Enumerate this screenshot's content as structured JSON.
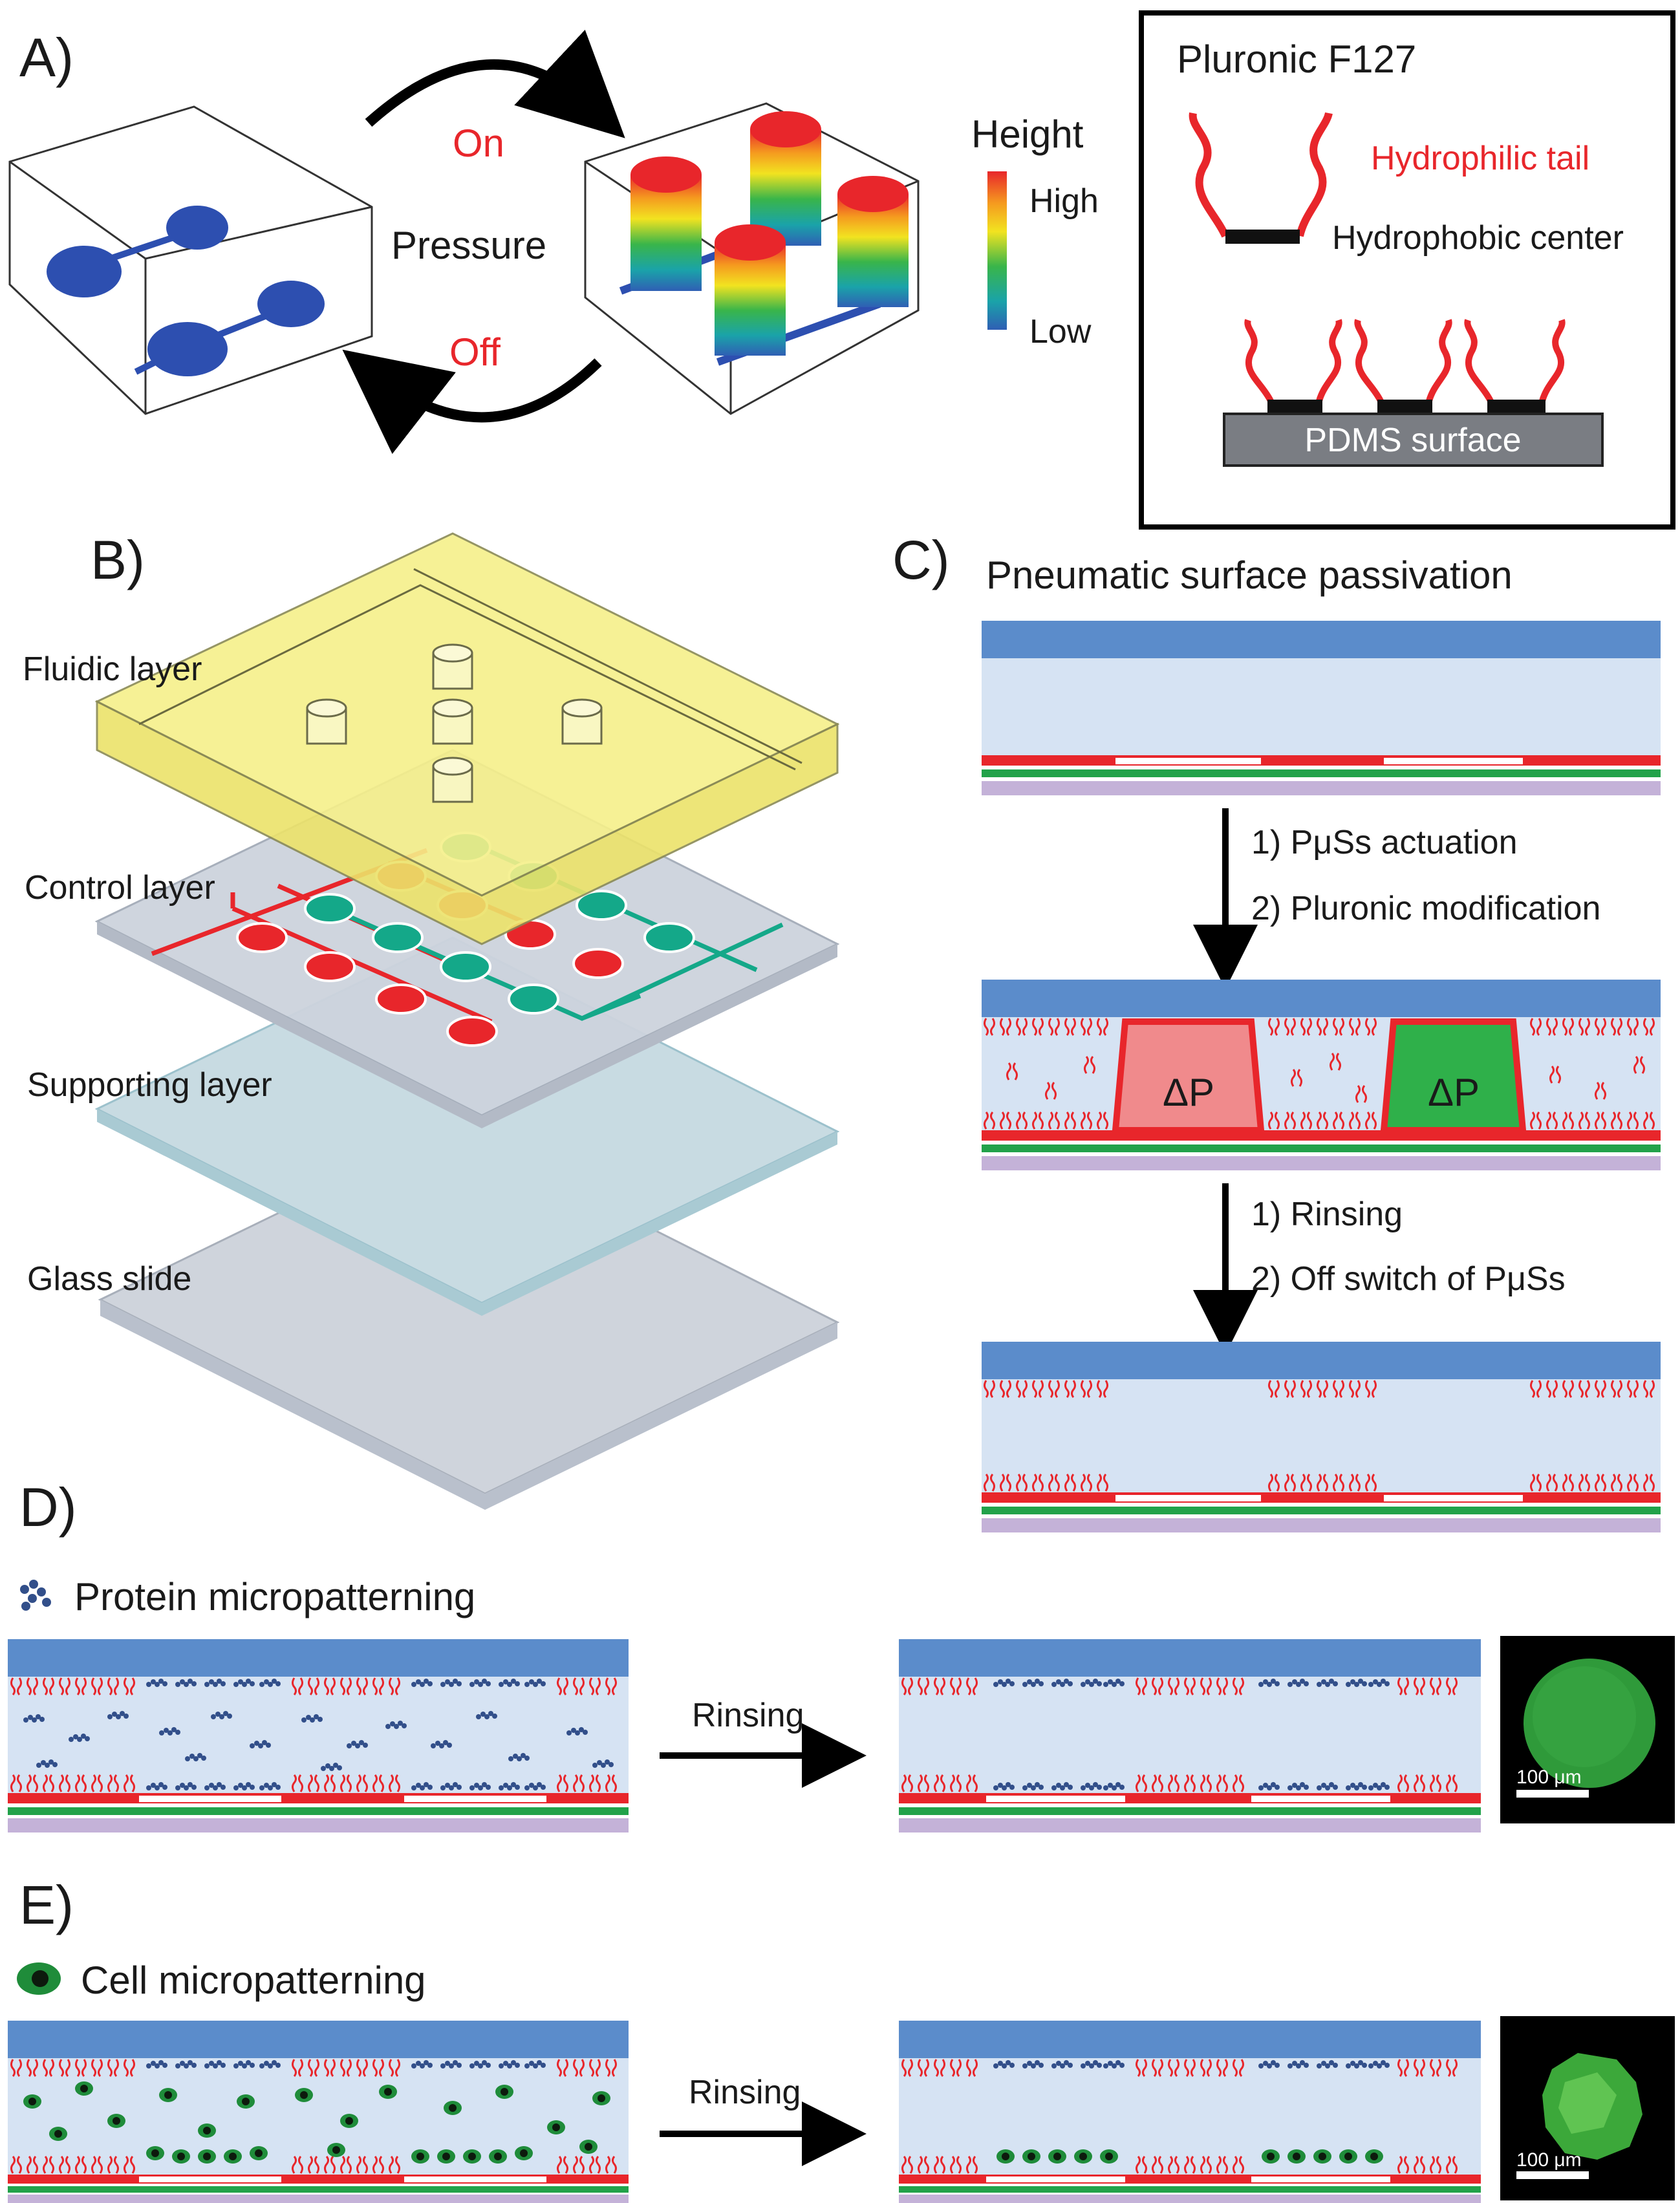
{
  "panels": {
    "a": "A)",
    "b": "B)",
    "c": "C)",
    "d": "D)",
    "e": "E)"
  },
  "panel_a": {
    "on": "On",
    "off": "Off",
    "pressure": "Pressure",
    "legend": {
      "title": "Height",
      "high": "High",
      "low": "Low"
    },
    "box": {
      "title": "Pluronic F127",
      "hydrophilic": "Hydrophilic tail",
      "hydrophobic": "Hydrophobic center",
      "surface": "PDMS surface"
    }
  },
  "panel_b": {
    "fluidic": "Fluidic layer",
    "control": "Control layer",
    "supporting": "Supporting layer",
    "glass": "Glass slide"
  },
  "panel_c": {
    "title": "Pneumatic surface passivation",
    "step1a": "1) PμSs actuation",
    "step1b": "2) Pluronic modification",
    "delta": "ΔP",
    "step2a": "1) Rinsing",
    "step2b": "2) Off switch of PμSs"
  },
  "panel_d": {
    "title": "Protein micropatterning",
    "arrow": "Rinsing",
    "scale": "100 μm"
  },
  "panel_e": {
    "title": "Cell micropatterning",
    "arrow": "Rinsing",
    "scale": "100 μm"
  },
  "colors": {
    "red": "#e8262b",
    "green": "#22a24a",
    "teal": "#14a889",
    "blue": "#5b8ccb",
    "lightblue": "#d6e3f3",
    "purple": "#c4b2d8",
    "yellow": "#f6f08a",
    "protein": "#324f8a"
  }
}
